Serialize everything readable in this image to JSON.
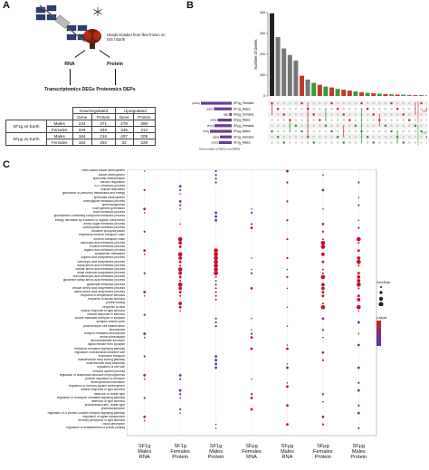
{
  "panelA": {
    "letter": "A",
    "caption": "Heads isolated from flies frozen on ISS / Earth",
    "rna": "RNA",
    "protein": "Protein",
    "transcriptomics": "Transcriptomics DEGs",
    "proteomics": "Proteomics DEPs",
    "table": {
      "header_groups": [
        "Downregulated",
        "Upregulated"
      ],
      "header_cols": [
        "Gene",
        "Protein",
        "Gene",
        "Protein"
      ],
      "rows": [
        {
          "group": "SF1g vs Earth",
          "sex": "Males",
          "vals": [
            "234",
            "371",
            "278",
            "388"
          ]
        },
        {
          "group": "",
          "sex": "Females",
          "vals": [
            "226",
            "346",
            "346",
            "312"
          ]
        },
        {
          "group": "SFμg vs Earth",
          "sex": "Males",
          "vals": [
            "164",
            "216",
            "407",
            "209"
          ]
        },
        {
          "group": "",
          "sex": "Females",
          "vals": [
            "184",
            "250",
            "32",
            "329"
          ]
        }
      ]
    }
  },
  "panelB": {
    "letter": "B",
    "ylabel": "Number of Genes",
    "yticks": [
      "0",
      "100",
      "200",
      "300",
      "400"
    ],
    "bars": [
      397,
      283,
      228,
      197,
      170,
      97,
      79,
      63,
      54,
      45,
      41,
      34,
      30,
      26,
      22,
      18,
      15,
      13,
      11,
      9,
      8,
      7,
      6,
      5,
      4,
      4,
      3,
      3,
      2,
      2,
      1
    ],
    "bar_colors": [
      "#222222",
      "#777777",
      "#777777",
      "#777777",
      "#777777",
      "#c0392b",
      "#777777",
      "#3a9a3a",
      "#c0392b",
      "#3a9a3a",
      "#c0392b",
      "#3a9a3a",
      "#c0392b",
      "#c0392b",
      "#3a9a3a",
      "#c0392b",
      "#3a9a3a",
      "#c0392b",
      "#3a9a3a",
      "#c0392b",
      "#777777",
      "#c0392b",
      "#3a9a3a",
      "#777777",
      "#c0392b",
      "#3a9a3a",
      "#777777",
      "#c0392b",
      "#3a9a3a",
      "#777777",
      "#c0392b"
    ],
    "sets": [
      {
        "label": "SF1g_Females",
        "count": "(1014)",
        "size": 1014,
        "color": "#c0392b"
      },
      {
        "label": "SF1g_Males",
        "count": "(587)",
        "size": 587,
        "color": "#c0392b"
      },
      {
        "label": "SFμg_Females",
        "count": "(80)",
        "size": 80,
        "color": "#c0392b"
      },
      {
        "label": "SFμg_Males",
        "count": "(463)",
        "size": 463,
        "color": "#c0392b"
      },
      {
        "label": "SFμg_Females",
        "count": "(571)",
        "size": 571,
        "color": "#3a9a3a"
      },
      {
        "label": "SFμg_Males",
        "count": "(716)",
        "size": 716,
        "color": "#3a9a3a"
      },
      {
        "label": "SF1g_Females",
        "count": "(389)",
        "size": 389,
        "color": "#3a9a3a"
      },
      {
        "label": "SF1g_Males",
        "count": "(425)",
        "size": 425,
        "color": "#3a9a3a"
      }
    ],
    "set_axis_label": "Total number of DEGs and DEPs",
    "deg_label": "DEG",
    "dep_label": "DEP"
  },
  "panelC": {
    "letter": "C",
    "terms": [
      "chitin-based cuticle development",
      "cuticle development",
      "spermatid differentiation",
      "aerobic respiration",
      "ATP metabolic process",
      "cellular respiration",
      "generation of precursor metabolites and energy",
      "spermatid development",
      "aminoglycan metabolic process",
      "spermatogenesis",
      "male gamete generation",
      "chitin metabolic process",
      "glucosamine-containing compound metabolic process",
      "energy derivation by oxidation of organic compounds",
      "amino sugar metabolic process",
      "carbohydrate metabolic process",
      "oxidative phosphorylation",
      "respiratory electron transport chain",
      "electron transport chain",
      "carboxylic acid metabolic process",
      "oxoacid metabolic process",
      "organic acid metabolic process",
      "cytoplasmic translation",
      "organic acid biosynthetic process",
      "carboxylic acid biosynthetic process",
      "alpha-amino acid metabolic process",
      "cellular amino acid metabolic process",
      "small molecule biosynthetic process",
      "monocarboxylic acid metabolic process",
      "glutamine family amino acid metabolic process",
      "glutamate metabolic process",
      "cellular amino acid biosynthetic process",
      "alpha-amino acid biosynthetic process",
      "response to temperature stimulus",
      "response to abiotic stimulus",
      "protein folding",
      "response to heat",
      "cellular response to light stimulus",
      "cellular response to stimulus",
      "vesicle-mediated transport in synapse",
      "synaptic vesicle cycle",
      "photoreceptor cell maintenance",
      "endocytosis",
      "receptor-mediated endocytosis",
      "retina homeostasis",
      "neurotransmitter secretion",
      "signal release from synapse",
      "rhodopsin mediated signaling pathway",
      "regulation of anatomical structure size",
      "endosome transport",
      "multivesicular body sorting pathway",
      "multivesicular body assembly",
      "regulation of cell size",
      "immune system process",
      "regulation of anatomical structure morphogenesis",
      "positive regulation of behavior",
      "developmental maturation",
      "regulation of nervous system development",
      "cellular response to light stimulus",
      "detection of visible light",
      "regulation of rhodopsin mediated signaling pathway",
      "detection of light stimulus",
      "phototransduction, visible light",
      "phototransduction",
      "regulation of G protein-coupled receptor signaling pathway",
      "regulation of signal transduction",
      "sensory perception of light stimulus",
      "visual perception",
      "regulation of establishment of planar polarity"
    ],
    "columns": [
      {
        "l1": "SF1g",
        "l2": "Males",
        "l3": "RNA"
      },
      {
        "l1": "SF1g",
        "l2": "Females",
        "l3": "Protein"
      },
      {
        "l1": "SF1g",
        "l2": "Males",
        "l3": "Protein"
      },
      {
        "l1": "SFμg",
        "l2": "Females",
        "l3": "RNA"
      },
      {
        "l1": "SFμg",
        "l2": "Males",
        "l3": "RNA"
      },
      {
        "l1": "SFμg",
        "l2": "Females",
        "l3": "Protein"
      },
      {
        "l1": "SFμg",
        "l2": "Males",
        "l3": "Protein"
      }
    ],
    "legend_count_title": "GeneRatio",
    "legend_p_title": "p.adjust"
  }
}
